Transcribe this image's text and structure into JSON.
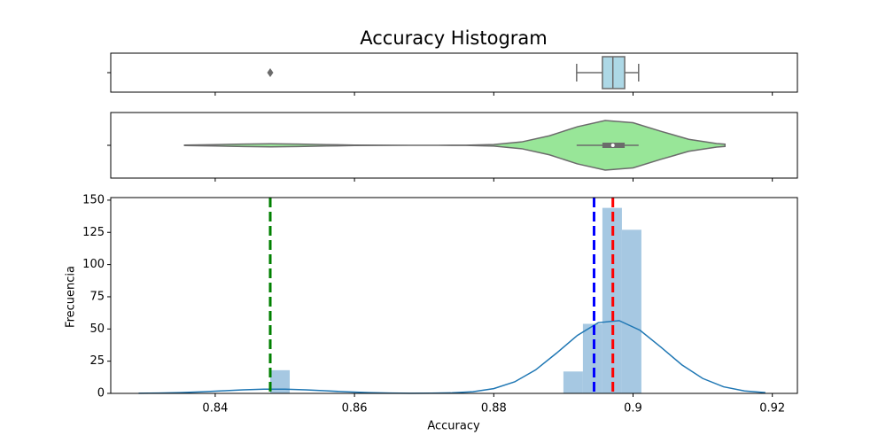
{
  "chart_data": [
    {
      "type": "box",
      "title": "Accuracy Histogram",
      "xlim": [
        0.825,
        0.9236
      ],
      "xticks": [
        0.84,
        0.86,
        0.88,
        0.9,
        0.92
      ],
      "box": {
        "whislo": 0.8919,
        "q1": 0.8956,
        "median": 0.8971,
        "q3": 0.8988,
        "whishi": 0.9008,
        "fliers": [
          0.8479
        ]
      },
      "color": "#add8e6",
      "edge_color": "#6b6b6b"
    },
    {
      "type": "violin",
      "xlim": [
        0.825,
        0.9236
      ],
      "xticks": [
        0.84,
        0.86,
        0.88,
        0.9,
        0.92
      ],
      "x": [
        0.8356,
        0.84,
        0.844,
        0.848,
        0.852,
        0.856,
        0.86,
        0.864,
        0.868,
        0.872,
        0.876,
        0.88,
        0.884,
        0.888,
        0.892,
        0.896,
        0.9,
        0.904,
        0.908,
        0.912,
        0.9132
      ],
      "density": [
        0.01,
        0.028,
        0.05,
        0.06,
        0.05,
        0.028,
        0.01,
        0.003,
        0.001,
        0.001,
        0.005,
        0.033,
        0.135,
        0.38,
        0.74,
        0.99,
        0.9,
        0.56,
        0.24,
        0.07,
        0.045
      ],
      "box": {
        "whislo": 0.8919,
        "q1": 0.8956,
        "median": 0.8971,
        "q3": 0.8988,
        "whishi": 0.9008
      },
      "color": "#98e698",
      "edge_color": "#6b6b6b"
    },
    {
      "type": "histogram",
      "xlabel": "Accuracy",
      "ylabel": "Frecuencia",
      "xlim": [
        0.825,
        0.9236
      ],
      "xticks": [
        0.84,
        0.86,
        0.88,
        0.9,
        0.92
      ],
      "ylim": [
        0,
        152
      ],
      "yticks": [
        0,
        25,
        50,
        75,
        100,
        125,
        150
      ],
      "bins": [
        0.8479,
        0.8507,
        0.8535,
        0.8563,
        0.8591,
        0.8619,
        0.8647,
        0.8675,
        0.8703,
        0.8731,
        0.876,
        0.8788,
        0.8816,
        0.8844,
        0.8872,
        0.89,
        0.8928,
        0.8956,
        0.8984,
        0.9012
      ],
      "values": [
        18,
        0,
        0,
        0,
        0,
        0,
        0,
        0,
        0,
        0,
        0,
        0,
        0,
        0,
        0,
        17,
        54,
        144,
        127
      ],
      "color": "#a6c8e2",
      "kde": {
        "color": "#1f77b4",
        "x": [
          0.829,
          0.832,
          0.835,
          0.838,
          0.841,
          0.844,
          0.847,
          0.85,
          0.853,
          0.856,
          0.859,
          0.862,
          0.865,
          0.868,
          0.871,
          0.874,
          0.877,
          0.88,
          0.883,
          0.886,
          0.889,
          0.892,
          0.895,
          0.898,
          0.901,
          0.904,
          0.907,
          0.91,
          0.913,
          0.916,
          0.919
        ],
        "values": [
          0.09,
          0.25,
          0.59,
          1.17,
          1.94,
          2.73,
          3.23,
          3.23,
          2.73,
          1.94,
          1.17,
          0.59,
          0.25,
          0.11,
          0.13,
          0.4,
          1.31,
          3.72,
          8.96,
          18.2,
          31.2,
          45.0,
          54.9,
          56.5,
          49.0,
          35.9,
          22.2,
          11.6,
          5.1,
          1.88,
          0.59
        ]
      },
      "vlines": [
        {
          "value": 0.8479,
          "color": "#008000"
        },
        {
          "value": 0.8944,
          "color": "#0000ff"
        },
        {
          "value": 0.8971,
          "color": "#ff0000"
        }
      ]
    }
  ]
}
